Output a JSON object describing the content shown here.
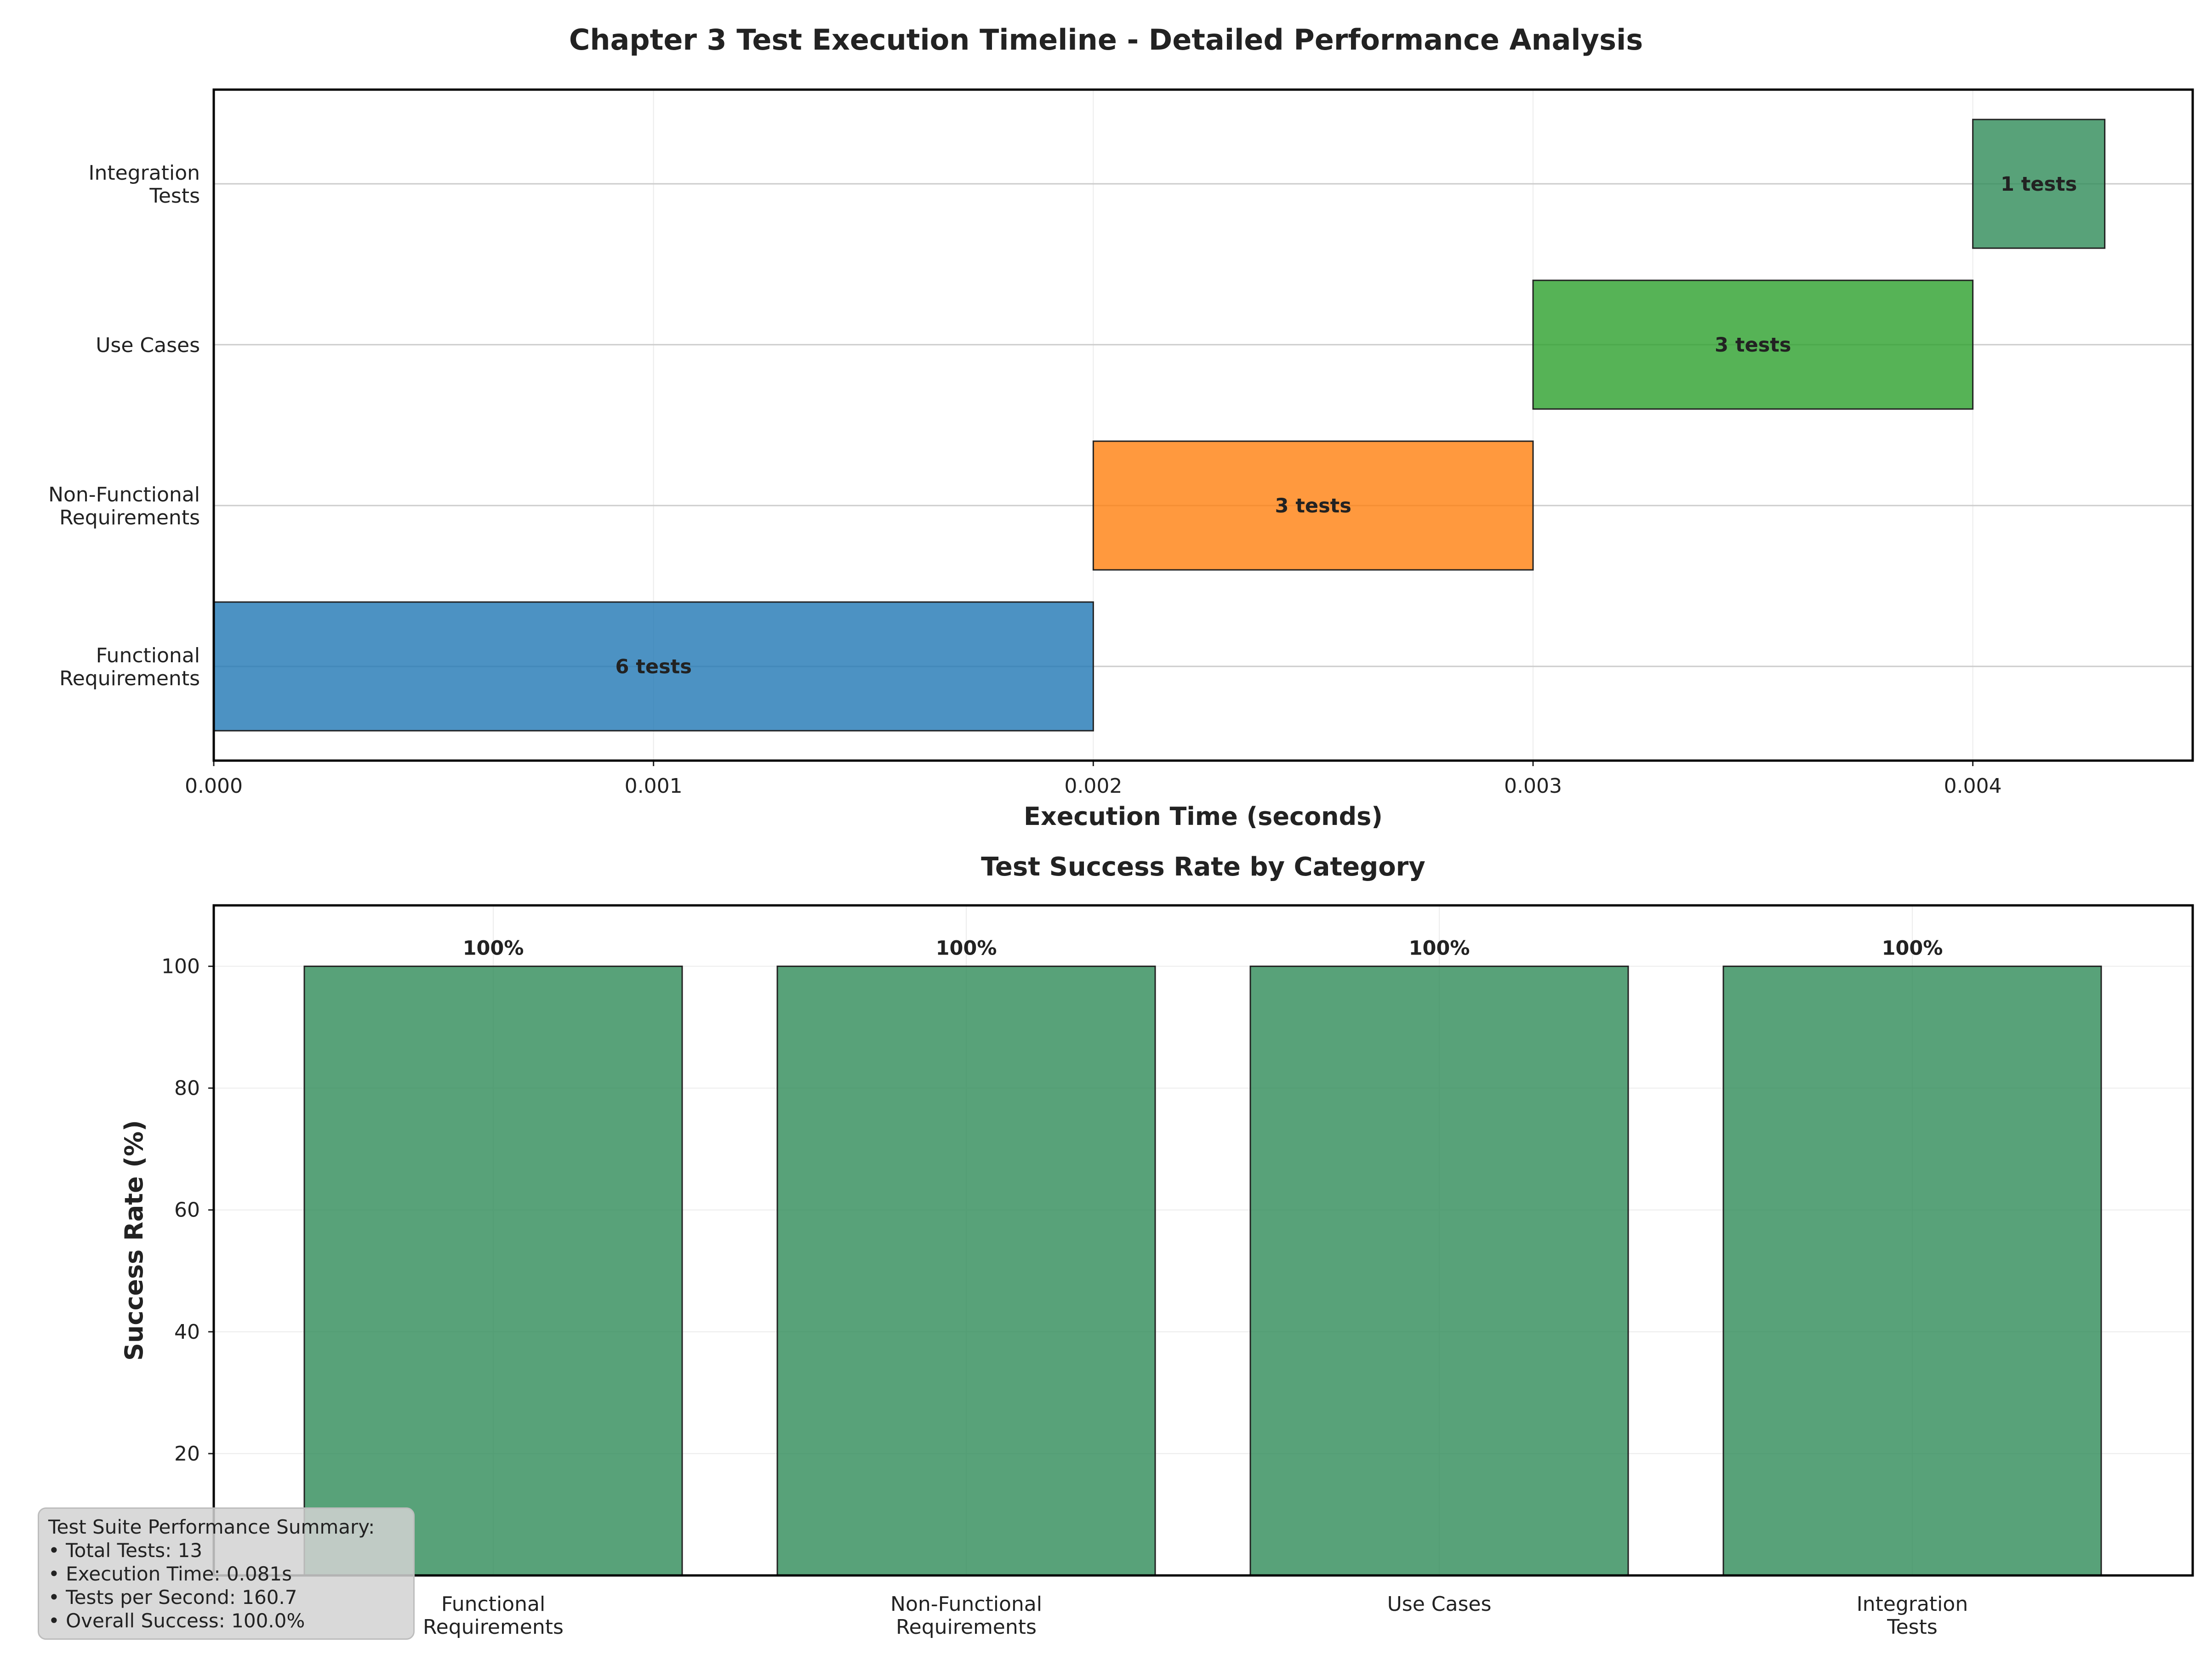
{
  "chart_data": [
    {
      "type": "bar",
      "orientation": "horizontal",
      "title": "Chapter 3 Test Execution Timeline - Detailed Performance Analysis",
      "xlabel": "Execution Time (seconds)",
      "ylabel": "",
      "xlim": [
        0,
        0.0045
      ],
      "x_ticks": [
        "0.000",
        "0.001",
        "0.002",
        "0.003",
        "0.004"
      ],
      "categories": [
        [
          "Functional",
          "Requirements"
        ],
        [
          "Non-Functional",
          "Requirements"
        ],
        [
          "Use Cases"
        ],
        [
          "Integration",
          "Tests"
        ]
      ],
      "start": [
        0.0,
        0.002,
        0.003,
        0.004
      ],
      "duration": [
        0.002,
        0.001,
        0.001,
        0.0003
      ],
      "labels": [
        "6 tests",
        "3 tests",
        "3 tests",
        "1 tests"
      ],
      "colors": [
        "#1f77b4",
        "#ff7f0e",
        "#2ca02c",
        "#2e8b57"
      ],
      "grid": true
    },
    {
      "type": "bar",
      "title": "Test Success Rate by Category",
      "xlabel": "",
      "ylabel": "Success Rate (%)",
      "ylim": [
        0,
        110
      ],
      "y_ticks": [
        "20",
        "40",
        "60",
        "80",
        "100"
      ],
      "categories": [
        [
          "Functional",
          "Requirements"
        ],
        [
          "Non-Functional",
          "Requirements"
        ],
        [
          "Use Cases"
        ],
        [
          "Integration",
          "Tests"
        ]
      ],
      "values": [
        100,
        100,
        100,
        100
      ],
      "labels": [
        "100%",
        "100%",
        "100%",
        "100%"
      ],
      "color": "#2e8b57",
      "grid": true
    }
  ],
  "summary": {
    "title": "Test Suite Performance Summary:",
    "lines": [
      "• Total Tests: 13",
      "• Execution Time: 0.081s",
      "• Tests per Second: 160.7",
      "• Overall Success: 100.0%"
    ]
  }
}
